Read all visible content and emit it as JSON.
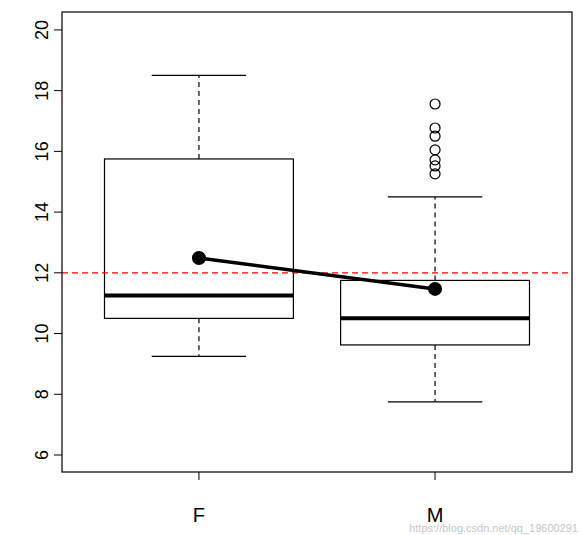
{
  "chart_data": {
    "type": "box",
    "categories": [
      "F",
      "M"
    ],
    "stats": [
      {
        "min": 9.25,
        "q1": 10.5,
        "median": 11.25,
        "q3": 15.75,
        "max": 18.5,
        "mean": 12.49,
        "outliers": []
      },
      {
        "min": 7.75,
        "q1": 9.625,
        "median": 10.5,
        "q3": 11.75,
        "max": 14.5,
        "mean": 11.47,
        "outliers": [
          15.26,
          15.52,
          15.72,
          16.05,
          16.5,
          16.77,
          17.56
        ]
      }
    ],
    "color": "#000000",
    "reference_line": {
      "value": 12,
      "color": "#ff0000",
      "line_style": "dashed"
    },
    "ylim": [
      5.44,
      20.59
    ],
    "yticks": [
      6,
      8,
      10,
      12,
      14,
      16,
      18,
      20
    ],
    "annotations": [
      "https://blog.csdn.net/qq_19600291"
    ]
  }
}
